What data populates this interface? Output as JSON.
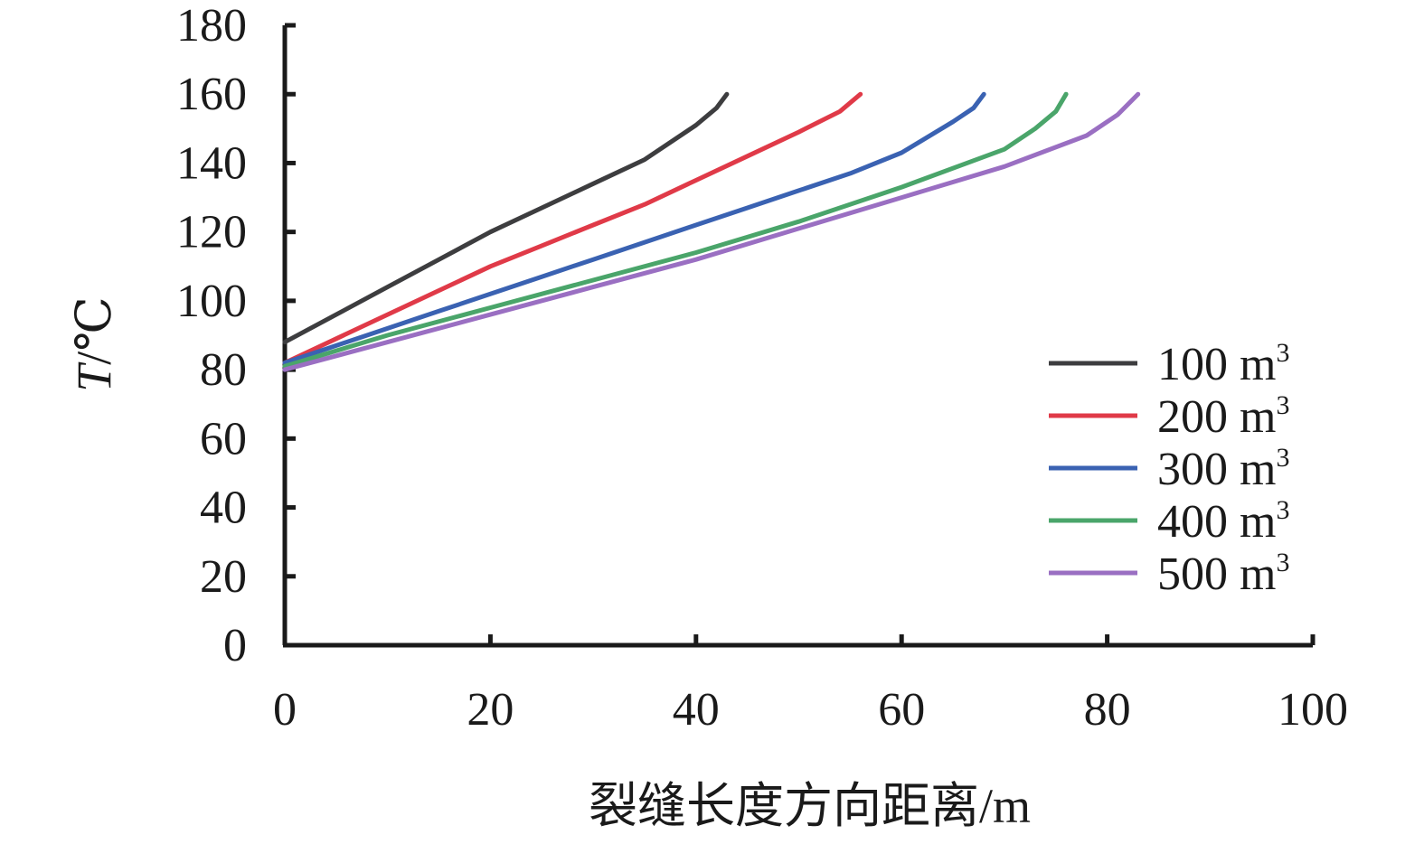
{
  "chart_data": {
    "type": "line",
    "title": "",
    "xlabel": "裂缝长度方向距离/m",
    "ylabel_italic": "T",
    "ylabel_rest": "/℃",
    "xlim": [
      0,
      100
    ],
    "ylim": [
      0,
      180
    ],
    "x_ticks": [
      "0",
      "20",
      "40",
      "60",
      "80",
      "100"
    ],
    "y_ticks": [
      "0",
      "20",
      "40",
      "60",
      "80",
      "100",
      "120",
      "140",
      "160",
      "180"
    ],
    "grid": false,
    "legend_position": "right",
    "series": [
      {
        "name": "100 m",
        "name_sup": "3",
        "color": "#3d3d3f",
        "points": [
          [
            0,
            88
          ],
          [
            5,
            96
          ],
          [
            10,
            104
          ],
          [
            15,
            112
          ],
          [
            20,
            120
          ],
          [
            25,
            127
          ],
          [
            30,
            134
          ],
          [
            35,
            141
          ],
          [
            40,
            151
          ],
          [
            42,
            156
          ],
          [
            43,
            160
          ]
        ]
      },
      {
        "name": "200 m",
        "name_sup": "3",
        "color": "#e03a48",
        "points": [
          [
            0,
            82
          ],
          [
            5,
            89
          ],
          [
            10,
            96
          ],
          [
            15,
            103
          ],
          [
            20,
            110
          ],
          [
            25,
            116
          ],
          [
            30,
            122
          ],
          [
            35,
            128
          ],
          [
            40,
            135
          ],
          [
            45,
            142
          ],
          [
            50,
            149
          ],
          [
            54,
            155
          ],
          [
            56,
            160
          ]
        ]
      },
      {
        "name": "300 m",
        "name_sup": "3",
        "color": "#3a62b2",
        "points": [
          [
            0,
            82
          ],
          [
            5,
            87
          ],
          [
            10,
            92
          ],
          [
            15,
            97
          ],
          [
            20,
            102
          ],
          [
            25,
            107
          ],
          [
            30,
            112
          ],
          [
            35,
            117
          ],
          [
            40,
            122
          ],
          [
            45,
            127
          ],
          [
            50,
            132
          ],
          [
            55,
            137
          ],
          [
            60,
            143
          ],
          [
            65,
            152
          ],
          [
            67,
            156
          ],
          [
            68,
            160
          ]
        ]
      },
      {
        "name": "400 m",
        "name_sup": "3",
        "color": "#4aa56a",
        "points": [
          [
            0,
            81
          ],
          [
            10,
            90
          ],
          [
            20,
            98
          ],
          [
            30,
            106
          ],
          [
            40,
            114
          ],
          [
            50,
            123
          ],
          [
            60,
            133
          ],
          [
            70,
            144
          ],
          [
            73,
            150
          ],
          [
            75,
            155
          ],
          [
            76,
            160
          ]
        ]
      },
      {
        "name": "500 m",
        "name_sup": "3",
        "color": "#9a6fc2",
        "points": [
          [
            0,
            80
          ],
          [
            10,
            88
          ],
          [
            20,
            96
          ],
          [
            30,
            104
          ],
          [
            40,
            112
          ],
          [
            50,
            121
          ],
          [
            60,
            130
          ],
          [
            70,
            139
          ],
          [
            78,
            148
          ],
          [
            81,
            154
          ],
          [
            83,
            160
          ]
        ]
      }
    ]
  }
}
